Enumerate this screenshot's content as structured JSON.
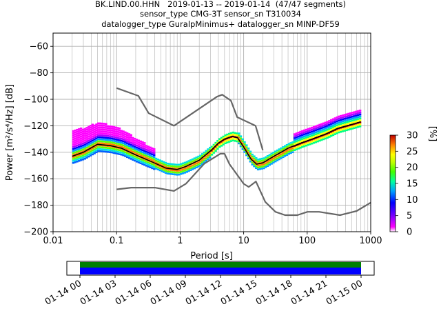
{
  "title_lines": [
    "BK.LIND.00.HHN   2019-01-13 -- 2019-01-14  (47/47 segments)",
    "sensor_type CMG-3T sensor_sn T310034",
    "datalogger_type GuralpMinimus+ datalogger_sn MINP-DF59"
  ],
  "chart_data": {
    "type": "heatmap",
    "xlabel": "Period [s]",
    "ylabel_main": "Power [m",
    "ylabel_unit_text": "Power [m²/s⁴/Hz] [dB]",
    "x_scale": "log",
    "xlim": [
      0.01,
      1000
    ],
    "ylim": [
      -200,
      -50
    ],
    "x_ticks": [
      0.01,
      0.1,
      1,
      10,
      100,
      1000
    ],
    "x_tick_labels": [
      "0.01",
      "0.1",
      "1",
      "10",
      "100",
      "1000"
    ],
    "y_ticks": [
      -200,
      -180,
      -160,
      -140,
      -120,
      -100,
      -80,
      -60
    ],
    "y_tick_labels": [
      "−200",
      "−180",
      "−160",
      "−140",
      "−120",
      "−100",
      "−80",
      "−60"
    ],
    "grid": true,
    "colorbar": {
      "label": "[%]",
      "range": [
        0,
        30
      ],
      "ticks": [
        0,
        5,
        10,
        15,
        20,
        25,
        30
      ],
      "tick_labels": [
        "0",
        "5",
        "10",
        "15",
        "20",
        "25",
        "30"
      ]
    },
    "nhnm": {
      "period": [
        0.1,
        0.22,
        0.32,
        0.8,
        3.8,
        4.6,
        6.3,
        7.9,
        15.4,
        20
      ],
      "power": [
        -91.5,
        -97.4,
        -110.5,
        -120,
        -98,
        -96.5,
        -101,
        -113.5,
        -120,
        -138.5
      ]
    },
    "nlnm": {
      "period": [
        0.1,
        0.17,
        0.4,
        0.8,
        1.24,
        2.4,
        4.3,
        5,
        6,
        10,
        12,
        15.6,
        21.9,
        31.6,
        45,
        70,
        101,
        154,
        328,
        600,
        1000
      ],
      "power": [
        -168,
        -166.7,
        -166.7,
        -169.2,
        -163.7,
        -148.6,
        -141.1,
        -141.1,
        -149,
        -163.8,
        -166.2,
        -162.1,
        -177.5,
        -185,
        -187.5,
        -187.5,
        -185,
        -185,
        -187.5,
        -184.4,
        -178
      ]
    },
    "median": {
      "period": [
        0.02,
        0.03,
        0.05,
        0.08,
        0.12,
        0.2,
        0.35,
        0.6,
        0.9,
        1.2,
        2,
        3,
        4,
        5,
        6.5,
        8,
        10,
        13,
        16,
        20,
        30,
        50,
        80,
        120,
        200,
        300,
        500,
        700
      ],
      "power": [
        -143,
        -140,
        -134,
        -135,
        -137,
        -142,
        -147,
        -152,
        -153,
        -151,
        -146,
        -139,
        -133,
        -130,
        -128,
        -129,
        -136,
        -145,
        -149,
        -148,
        -143,
        -137,
        -133,
        -130,
        -126,
        -122,
        -119,
        -117
      ]
    },
    "time_axis": {
      "tick_labels": [
        "01-14 00",
        "01-14 03",
        "01-14 06",
        "01-14 09",
        "01-14 12",
        "01-14 15",
        "01-14 18",
        "01-14 21",
        "01-15 00"
      ]
    }
  }
}
